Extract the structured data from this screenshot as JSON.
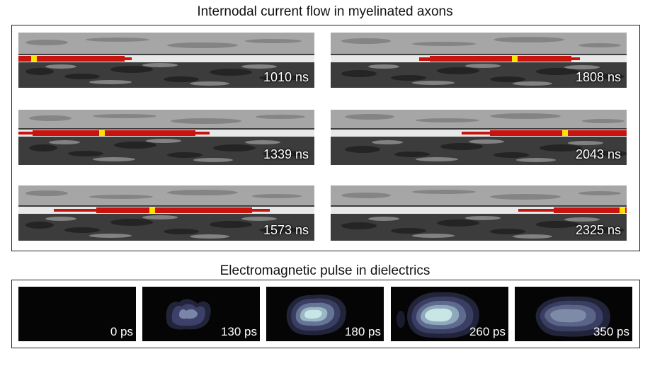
{
  "top_title": "Internodal current flow in myelinated axons",
  "bottom_title": "Electromagnetic pulse in dielectrics",
  "axon_panels": [
    {
      "label": "1010 ns"
    },
    {
      "label": "1808 ns"
    },
    {
      "label": "1339 ns"
    },
    {
      "label": "2043 ns"
    },
    {
      "label": "1573 ns"
    },
    {
      "label": "2325 ns"
    }
  ],
  "pulse_panels": [
    {
      "label": "0 ps"
    },
    {
      "label": "130 ps"
    },
    {
      "label": "180 ps"
    },
    {
      "label": "260 ps"
    },
    {
      "label": "350 ps"
    }
  ],
  "colors": {
    "current": "#c8140f",
    "marker": "#ffe000",
    "contour_outer": "#2e3050",
    "contour_inner": "#c9e6e6"
  }
}
